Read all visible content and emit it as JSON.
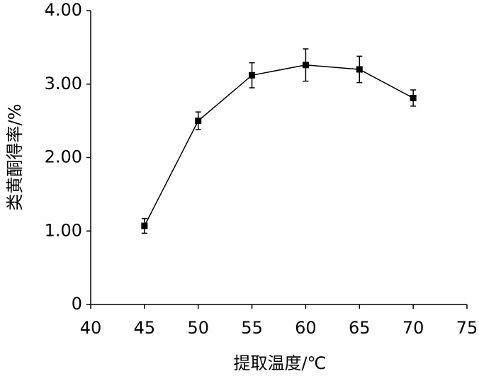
{
  "chart_data": {
    "type": "line",
    "x_label": "提取温度/℃",
    "y_label": "类黄酮得率/%",
    "x": [
      45,
      50,
      55,
      60,
      65,
      70
    ],
    "values": [
      1.07,
      2.5,
      3.12,
      3.26,
      3.2,
      2.81
    ],
    "errors": [
      0.1,
      0.12,
      0.17,
      0.22,
      0.18,
      0.11
    ],
    "color": "#000000",
    "xlim": [
      40,
      75
    ],
    "xticks": [
      40,
      45,
      50,
      55,
      60,
      65,
      70,
      75
    ],
    "ylim": [
      0,
      4
    ],
    "yticks": [
      0,
      {
        "value": 1,
        "label": "1.00"
      },
      {
        "value": 2,
        "label": "2.00"
      },
      {
        "value": 3,
        "label": "3.00"
      },
      {
        "value": 4,
        "label": "4.00"
      }
    ]
  }
}
